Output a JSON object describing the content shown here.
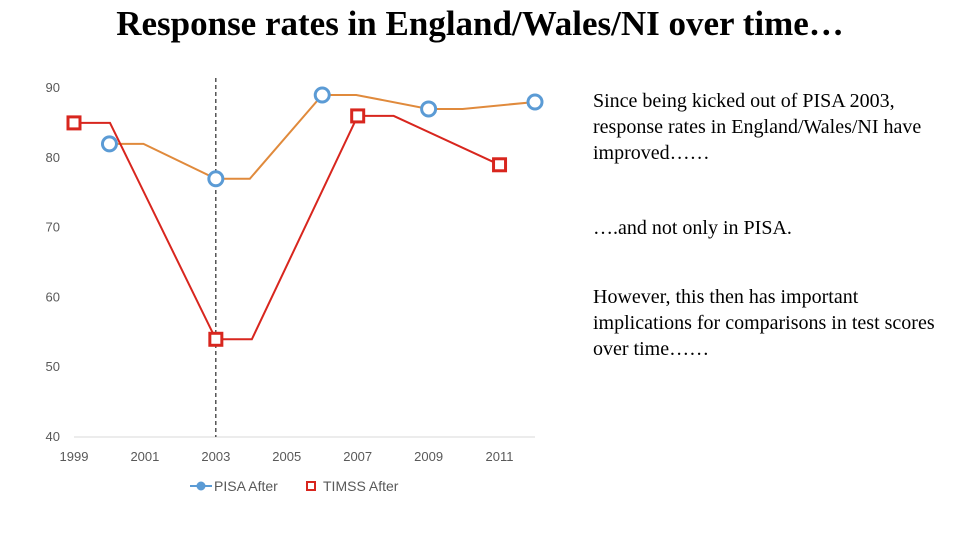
{
  "title": "Response rates in England/Wales/NI over time…",
  "notes": [
    "Since being kicked out of PISA 2003, response rates in England/Wales/NI have improved……",
    "….and not only in PISA.",
    "However, this then has important implications for comparisons in test scores over time……"
  ],
  "colors": {
    "pisa_line": "#E08A3C",
    "pisa_marker": "#5B9BD5",
    "timss": "#D8261E",
    "axis": "#D9D9D9",
    "marker_line": "#000000"
  },
  "chart_data": {
    "type": "line",
    "title": "",
    "xlabel": "",
    "ylabel": "",
    "xlim": [
      1999,
      2012
    ],
    "ylim": [
      40,
      90
    ],
    "x_ticks": [
      1999,
      2001,
      2003,
      2005,
      2007,
      2009,
      2011
    ],
    "y_ticks": [
      40,
      50,
      60,
      70,
      80,
      90
    ],
    "grid": false,
    "legend_position": "bottom",
    "vertical_marker_x": 2003,
    "series": [
      {
        "name": "PISA After",
        "marker": "circle",
        "points": [
          [
            2000,
            82
          ],
          [
            2003,
            77
          ],
          [
            2006,
            89
          ],
          [
            2009,
            87
          ],
          [
            2012,
            88
          ]
        ]
      },
      {
        "name": "TIMSS After",
        "marker": "square",
        "points": [
          [
            1999,
            85
          ],
          [
            2003,
            54
          ],
          [
            2007,
            86
          ],
          [
            2011,
            79
          ]
        ]
      }
    ]
  }
}
